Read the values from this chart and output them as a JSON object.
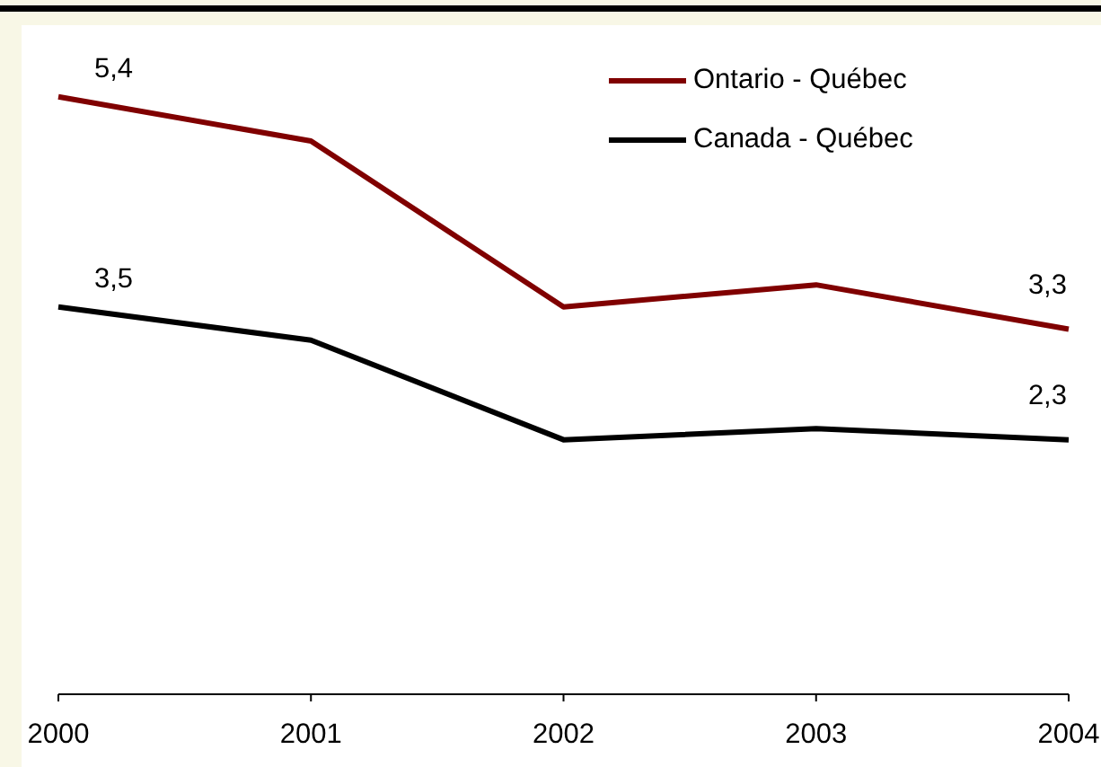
{
  "chart_data": {
    "type": "line",
    "categories": [
      "2000",
      "2001",
      "2002",
      "2003",
      "2004"
    ],
    "ylim": [
      0,
      6
    ],
    "tick_labels": "x",
    "legend": "top right",
    "marker": "none",
    "line_style": "solid",
    "series": [
      {
        "name": "Ontario - Québec",
        "color": "#800000",
        "values": [
          5.4,
          5.0,
          3.5,
          3.7,
          3.3
        ],
        "value_labels": [
          "5,4",
          null,
          null,
          null,
          "3,3"
        ]
      },
      {
        "name": "Canada - Québec",
        "color": "#000000",
        "values": [
          3.5,
          3.2,
          2.3,
          2.4,
          2.3
        ],
        "value_labels": [
          "3,5",
          null,
          null,
          null,
          "2,3"
        ]
      }
    ]
  }
}
